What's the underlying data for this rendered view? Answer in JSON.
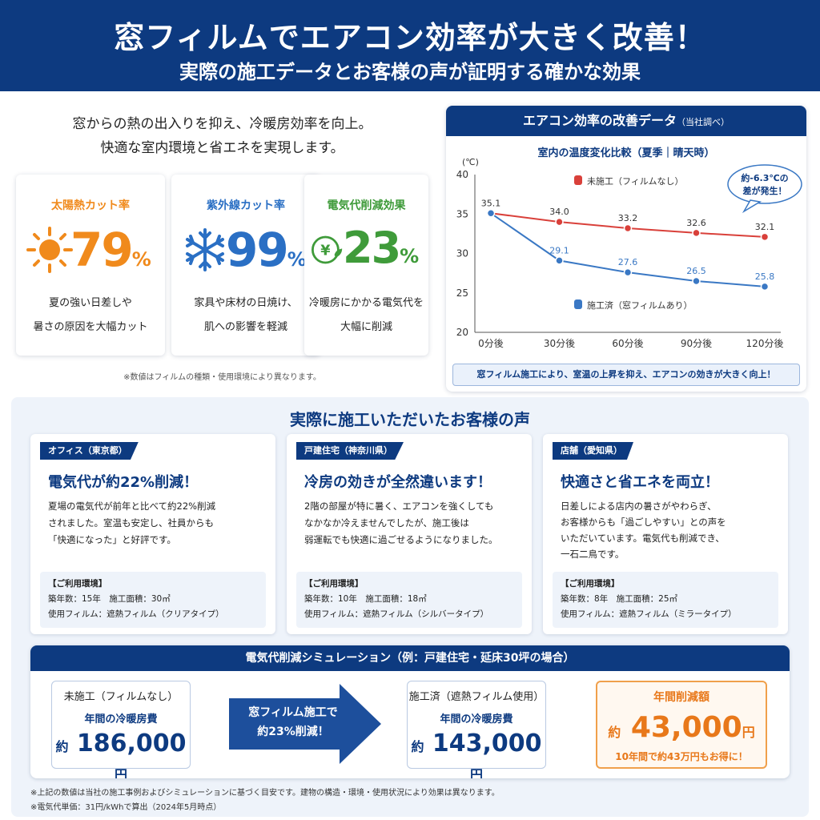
{
  "hero": {
    "title": "窓フィルムでエアコン効率が大きく改善！",
    "subtitle": "実際の施工データとお客様の声が証明する確かな効果"
  },
  "intro": {
    "line1": "窓からの熱の出入りを抑え、冷暖房効率を向上。",
    "line2": "快適な室内環境と省エネを実現します。"
  },
  "metrics": [
    {
      "title": "太陽熱カット率",
      "value": "79",
      "unit": "%",
      "desc1": "夏の強い日差しや",
      "desc2": "暑さの原因を大幅カット",
      "color": "#f08a1c",
      "icon": "sun-icon"
    },
    {
      "title": "紫外線カット率",
      "value": "99",
      "unit": "%",
      "desc1": "家具や床材の日焼け、",
      "desc2": "肌への影響を軽減",
      "color": "#2a6fc4",
      "icon": "snowflake-icon"
    },
    {
      "title": "電気代削減効果",
      "value": "23",
      "unit": "%",
      "desc1": "冷暖房にかかる電気代を",
      "desc2": "大幅に削減",
      "color": "#3f9b3a",
      "icon": "yen-leaf-icon"
    }
  ],
  "metrics_note": "※数値はフィルムの種類・使用環境により異なります。",
  "chart_card": {
    "title": "エアコン効率の改善データ",
    "title_note": "（当社調べ）",
    "footer": "窓フィルム施工により、室温の上昇を抑え、エアコンの効きが大きく向上！",
    "callout_line1": "約-6.3℃の",
    "callout_line2": "差が発生！"
  },
  "chart_data": {
    "type": "line",
    "title": "室内の温度変化比較（夏季｜晴天時）",
    "ylabel": "(℃)",
    "categories": [
      "0分後",
      "30分後",
      "60分後",
      "90分後",
      "120分後"
    ],
    "ylim": [
      20,
      40
    ],
    "yticks": [
      20,
      25,
      30,
      35,
      40
    ],
    "legend_position": "inside",
    "series": [
      {
        "name": "未施工（フィルムなし）",
        "values": [
          35.1,
          34.0,
          33.2,
          32.6,
          32.1
        ],
        "labels": [
          "35.1",
          "34.0",
          "33.2",
          "32.6",
          "32.1"
        ],
        "color": "#d9403a"
      },
      {
        "name": "施工済（窓フィルムあり）",
        "values": [
          35.1,
          29.1,
          27.6,
          26.5,
          25.8
        ],
        "labels": [
          "",
          "29.1",
          "27.6",
          "26.5",
          "25.8"
        ],
        "color": "#3a78c4"
      }
    ]
  },
  "voices": {
    "title": "実際に施工いただいたお客様の声",
    "cards": [
      {
        "tag": "オフィス（東京都）",
        "heading": "電気代が約22%削減！",
        "body": [
          "夏場の電気代が前年と比べて約22%削減",
          "されました。室温も安定し、社員からも",
          "「快適になった」と好評です。"
        ],
        "env_title": "【ご利用環境】",
        "env_line1": "築年数：15年　施工面積：30㎡",
        "env_line2": "使用フィルム：遮熱フィルム（クリアタイプ）"
      },
      {
        "tag": "戸建住宅（神奈川県）",
        "heading": "冷房の効きが全然違います！",
        "body": [
          "2階の部屋が特に暑く、エアコンを強くしても",
          "なかなか冷えませんでしたが、施工後は",
          "弱運転でも快適に過ごせるようになりました。"
        ],
        "env_title": "【ご利用環境】",
        "env_line1": "築年数：10年　施工面積：18㎡",
        "env_line2": "使用フィルム：遮熱フィルム（シルバータイプ）"
      },
      {
        "tag": "店舗（愛知県）",
        "heading": "快適さと省エネを両立！",
        "body": [
          "日差しによる店内の暑さがやわらぎ、",
          "お客様からも「過ごしやすい」との声を",
          "いただいています。電気代も削減でき、",
          "一石二鳥です。"
        ],
        "env_title": "【ご利用環境】",
        "env_line1": "築年数：8年　施工面積：25㎡",
        "env_line2": "使用フィルム：遮熱フィルム（ミラータイプ）"
      }
    ]
  },
  "simulation": {
    "title": "電気代削減シミュレーション（例：戸建住宅・延床30坪の場合）",
    "before": {
      "label": "未施工（フィルムなし）",
      "sub": "年間の冷暖房費",
      "prefix": "約",
      "amount": "186,000",
      "suffix": "円"
    },
    "arrow_line1": "窓フィルム施工で",
    "arrow_line2": "約23%削減！",
    "after": {
      "label": "施工済（遮熱フィルム使用）",
      "sub": "年間の冷暖房費",
      "prefix": "約",
      "amount": "143,000",
      "suffix": "円"
    },
    "saving": {
      "label": "年間削減額",
      "prefix": "約",
      "amount": "43,000",
      "suffix": "円",
      "note": "10年間で約43万円もお得に！"
    }
  },
  "footnotes": [
    "※上記の数値は当社の施工事例およびシミュレーションに基づく目安です。建物の構造・環境・使用状況により効果は異なります。",
    "※電気代単価：31円/kWhで算出（2024年5月時点）"
  ]
}
